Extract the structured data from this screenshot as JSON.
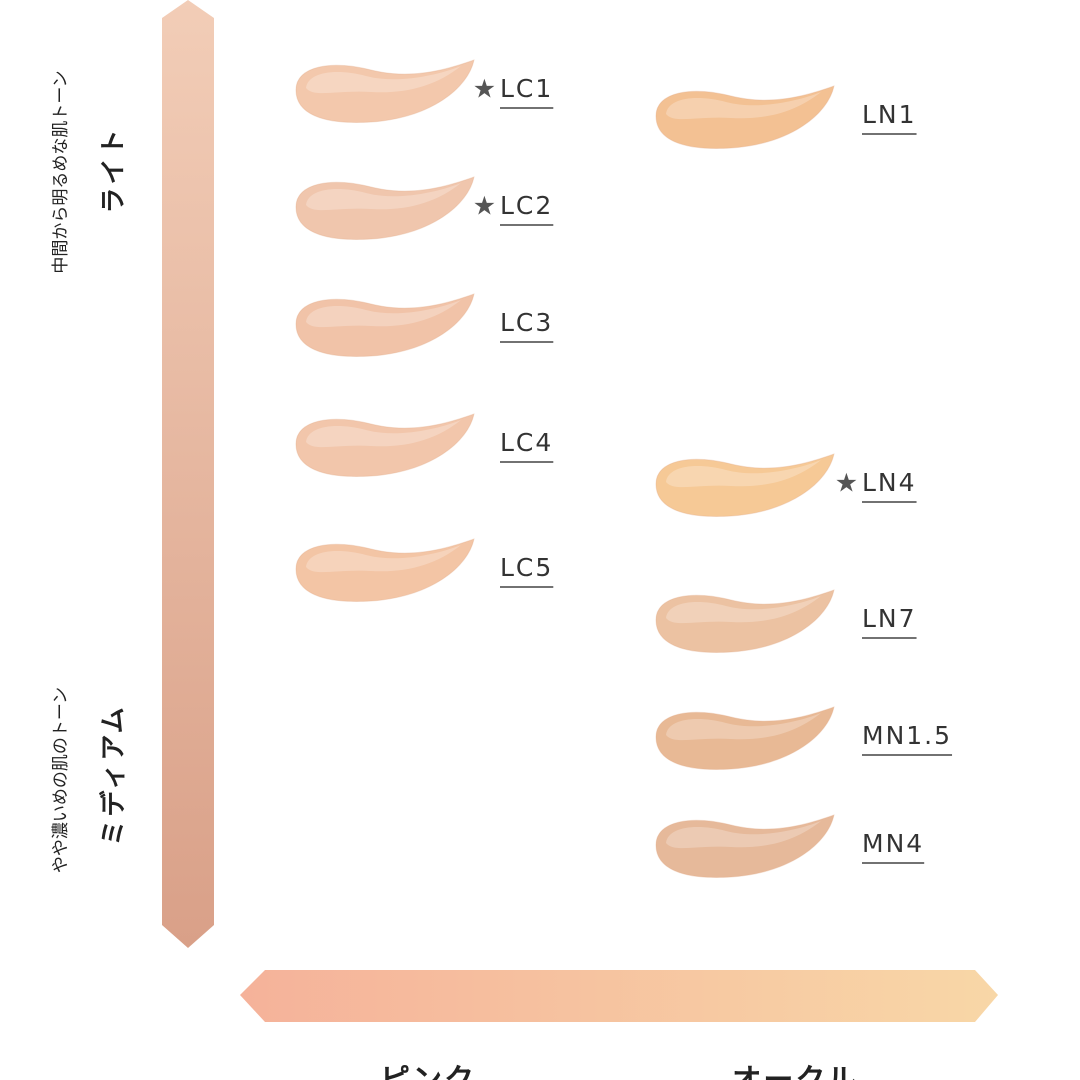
{
  "vertical_axis": {
    "top": {
      "sub": "中間から明るめな肌トーン",
      "main": "ライト"
    },
    "bottom": {
      "sub": "やや濃いめの肌のトーン",
      "main": "ミディアム"
    }
  },
  "horizontal_axis": {
    "left": "ピンク",
    "right": "オークル"
  },
  "columns": [
    {
      "shades": [
        {
          "mark": "★",
          "label": "LC1",
          "color": "#f3c8ac"
        },
        {
          "mark": "★",
          "label": "LC2",
          "color": "#f0c6ad"
        },
        {
          "label": "LC3",
          "color": "#f1c3a8"
        },
        {
          "label": "LC4",
          "color": "#f2c6ab"
        },
        {
          "label": "LC5",
          "color": "#f3c5a5"
        }
      ]
    },
    {
      "shades": [
        {
          "label": "LN1",
          "color": "#f3c193"
        },
        {
          "mark": "★",
          "label": "LN4",
          "color": "#f6c996"
        },
        {
          "label": "LN7",
          "color": "#ecc2a2"
        },
        {
          "label": "MN1.5",
          "color": "#e8b995"
        },
        {
          "label": "MN4",
          "color": "#e6b99a"
        }
      ]
    }
  ]
}
